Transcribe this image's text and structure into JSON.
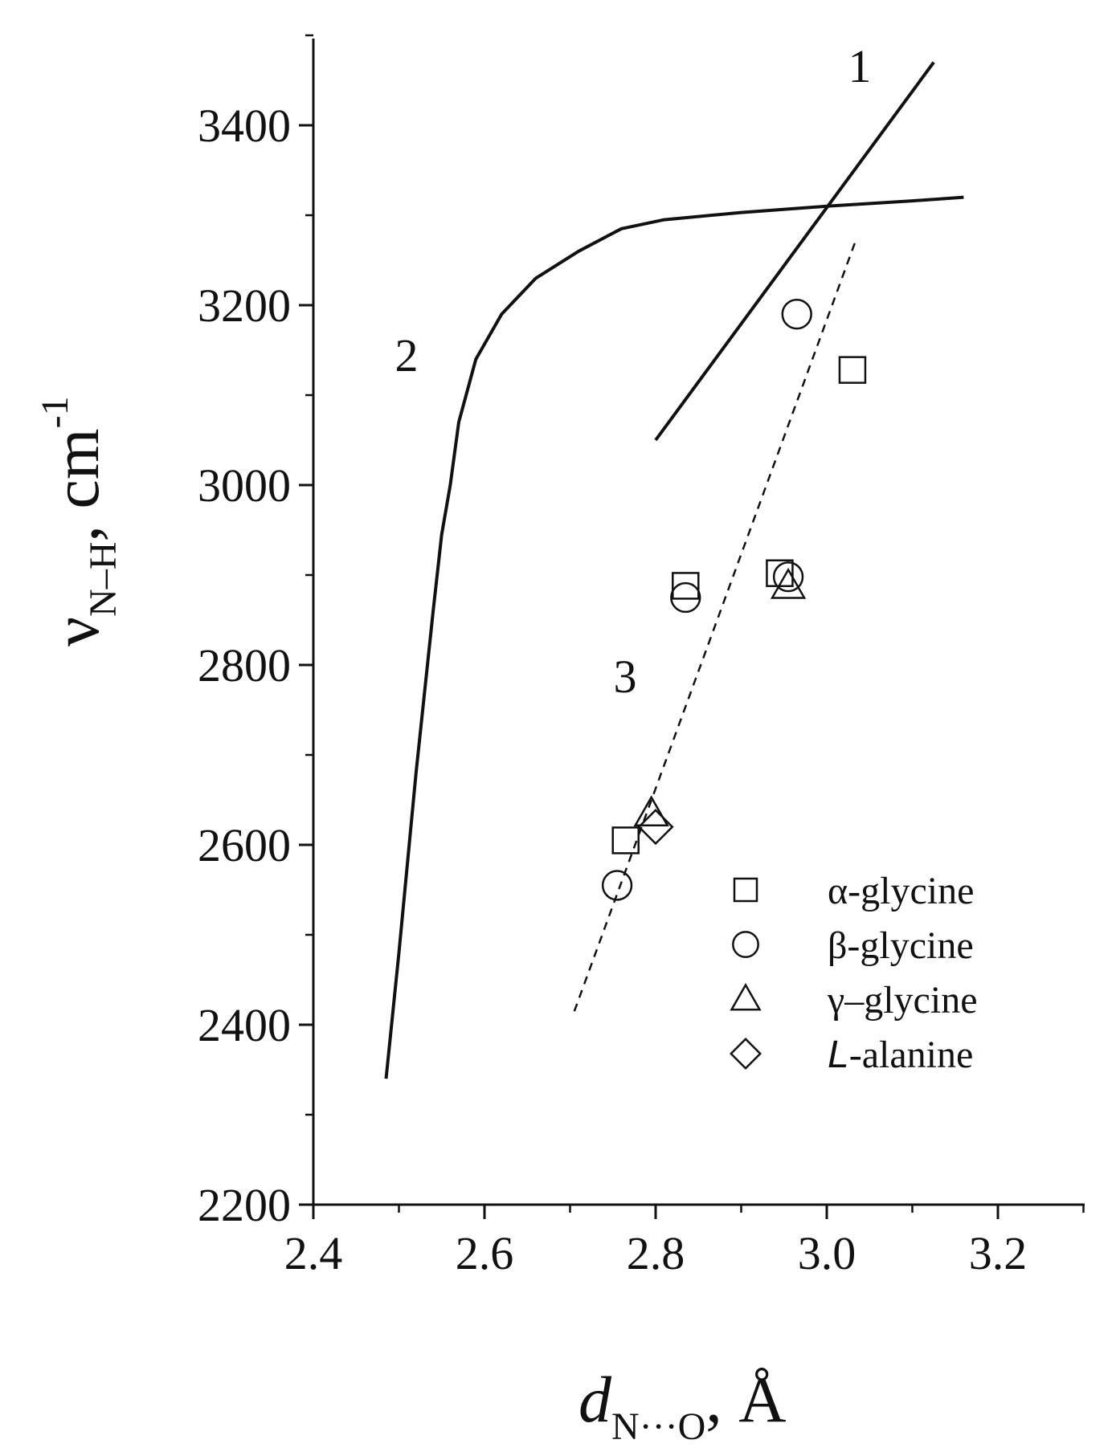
{
  "chart_data": {
    "type": "scatter",
    "xlabel": {
      "main": "d",
      "sub": "N···O",
      "suffix": ", Å"
    },
    "ylabel": {
      "main": "ν",
      "sub": "N–H",
      "suffix": ", cm",
      "sup": "-1"
    },
    "xlim": [
      2.4,
      3.3
    ],
    "ylim": [
      2200,
      3500
    ],
    "xticks": [
      2.4,
      2.6,
      2.8,
      3.0,
      3.2
    ],
    "xtick_labels": [
      "2.4",
      "2.6",
      "2.8",
      "3.0",
      "3.2"
    ],
    "yticks": [
      2200,
      2400,
      2600,
      2800,
      3000,
      3200,
      3400
    ],
    "ytick_labels": [
      "2200",
      "2400",
      "2600",
      "2800",
      "3000",
      "3200",
      "3400"
    ],
    "curves": [
      {
        "label": "1",
        "style": "solid",
        "x": [
          2.8,
          3.125
        ],
        "y": [
          3050,
          3470
        ]
      },
      {
        "label": "2",
        "style": "solid",
        "x": [
          2.485,
          2.5,
          2.52,
          2.54,
          2.55,
          2.56,
          2.57,
          2.59,
          2.62,
          2.66,
          2.71,
          2.76,
          2.81,
          2.9,
          3.0,
          3.1,
          3.16
        ],
        "y": [
          2340,
          2480,
          2680,
          2860,
          2945,
          3000,
          3070,
          3140,
          3190,
          3230,
          3260,
          3285,
          3295,
          3303,
          3310,
          3316,
          3320
        ]
      },
      {
        "label": "3",
        "style": "dashed",
        "x": [
          2.705,
          3.035
        ],
        "y": [
          2415,
          3275
        ]
      }
    ],
    "series": [
      {
        "name": "α-glycine",
        "marker": "square",
        "x": [
          2.765,
          2.835,
          2.945,
          3.03
        ],
        "y": [
          2605,
          2888,
          2902,
          3128
        ]
      },
      {
        "name": "β-glycine",
        "marker": "circle",
        "x": [
          2.755,
          2.835,
          2.955,
          2.965
        ],
        "y": [
          2555,
          2875,
          2898,
          3190
        ]
      },
      {
        "name": "γ–glycine",
        "marker": "triangle",
        "x": [
          2.795,
          2.955
        ],
        "y": [
          2635,
          2888
        ]
      },
      {
        "name": "L-alanine",
        "marker": "diamond",
        "x": [
          2.8
        ],
        "y": [
          2620
        ]
      }
    ],
    "legend": {
      "placement": "bottom-right",
      "items": [
        {
          "marker": "square",
          "text": "α-glycine"
        },
        {
          "marker": "circle",
          "text": "β-glycine"
        },
        {
          "marker": "triangle",
          "text": "γ–glycine"
        },
        {
          "marker": "diamond",
          "prefix_italic": "L",
          "text": "-alanine"
        }
      ]
    },
    "grid": false
  }
}
